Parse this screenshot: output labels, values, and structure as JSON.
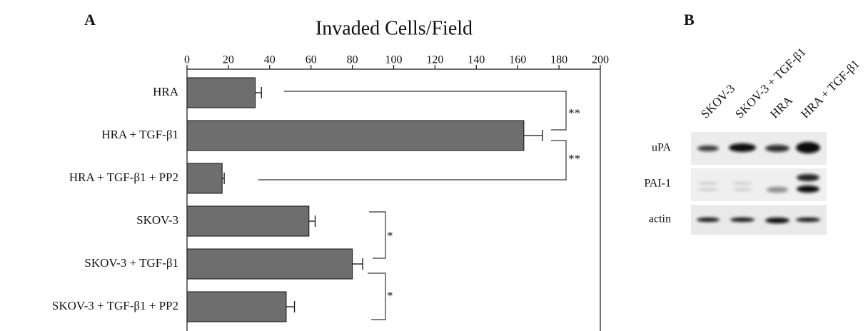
{
  "chart_data": {
    "type": "bar",
    "orientation": "horizontal",
    "title": "Invaded Cells/Field",
    "categories": [
      "HRA",
      "HRA + TGF-β1",
      "HRA + TGF-β1 + PP2",
      "SKOV-3",
      "SKOV-3 + TGF-β1",
      "SKOV-3 + TGF-β1 + PP2"
    ],
    "values": [
      33,
      163,
      17,
      59,
      80,
      48
    ],
    "errors": [
      3,
      9,
      1,
      3,
      5,
      4
    ],
    "color": "#6e6e6e",
    "xlim": [
      0,
      200
    ],
    "xticks": [
      0,
      20,
      40,
      60,
      80,
      100,
      120,
      140,
      160,
      180,
      200
    ],
    "annotations": [
      "**",
      "**",
      "*",
      "*"
    ]
  },
  "panel_labels": [
    "A",
    "B"
  ],
  "blot": {
    "lanes": [
      "SKOV-3",
      "SKOV-3 + TGF-β1",
      "HRA",
      "HRA + TGF-β1"
    ],
    "rows": [
      "uPA",
      "PAI-1",
      "actin"
    ]
  }
}
